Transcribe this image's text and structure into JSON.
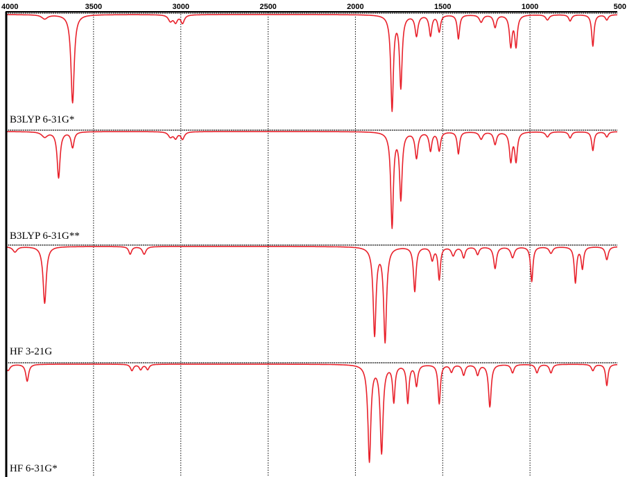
{
  "chart_data": {
    "type": "line",
    "xlabel": "",
    "ylabel": "",
    "xlim": [
      4000,
      500
    ],
    "x_reversed": true,
    "x_ticks": [
      4000,
      3500,
      3000,
      2500,
      2000,
      1500,
      1000,
      500
    ],
    "x_tick_labels": [
      "4000",
      "3500",
      "3000",
      "2500",
      "2000",
      "1500",
      "1000",
      "500"
    ],
    "grid": "vertical dotted",
    "line_color": "#e8202a",
    "panels": [
      {
        "label": "B3LYP 6-31G*",
        "peaks": [
          {
            "x": 3780,
            "depth": 0.04,
            "w": 20
          },
          {
            "x": 3620,
            "depth": 0.84,
            "w": 11
          },
          {
            "x": 3060,
            "depth": 0.06,
            "w": 14
          },
          {
            "x": 3030,
            "depth": 0.07,
            "w": 12
          },
          {
            "x": 2990,
            "depth": 0.08,
            "w": 12
          },
          {
            "x": 1790,
            "depth": 0.92,
            "w": 9
          },
          {
            "x": 1740,
            "depth": 0.7,
            "w": 9
          },
          {
            "x": 1650,
            "depth": 0.2,
            "w": 10
          },
          {
            "x": 1570,
            "depth": 0.2,
            "w": 9
          },
          {
            "x": 1520,
            "depth": 0.16,
            "w": 9
          },
          {
            "x": 1410,
            "depth": 0.23,
            "w": 8
          },
          {
            "x": 1280,
            "depth": 0.07,
            "w": 12
          },
          {
            "x": 1200,
            "depth": 0.12,
            "w": 10
          },
          {
            "x": 1110,
            "depth": 0.3,
            "w": 9
          },
          {
            "x": 1080,
            "depth": 0.3,
            "w": 9
          },
          {
            "x": 900,
            "depth": 0.05,
            "w": 12
          },
          {
            "x": 770,
            "depth": 0.06,
            "w": 10
          },
          {
            "x": 640,
            "depth": 0.3,
            "w": 8
          },
          {
            "x": 560,
            "depth": 0.05,
            "w": 10
          }
        ]
      },
      {
        "label": "B3LYP 6-31G**",
        "peaks": [
          {
            "x": 3780,
            "depth": 0.05,
            "w": 20
          },
          {
            "x": 3700,
            "depth": 0.44,
            "w": 10
          },
          {
            "x": 3620,
            "depth": 0.15,
            "w": 10
          },
          {
            "x": 3060,
            "depth": 0.05,
            "w": 14
          },
          {
            "x": 3030,
            "depth": 0.06,
            "w": 12
          },
          {
            "x": 2990,
            "depth": 0.07,
            "w": 12
          },
          {
            "x": 1790,
            "depth": 0.92,
            "w": 9
          },
          {
            "x": 1740,
            "depth": 0.65,
            "w": 9
          },
          {
            "x": 1650,
            "depth": 0.25,
            "w": 10
          },
          {
            "x": 1570,
            "depth": 0.18,
            "w": 9
          },
          {
            "x": 1520,
            "depth": 0.18,
            "w": 9
          },
          {
            "x": 1410,
            "depth": 0.21,
            "w": 8
          },
          {
            "x": 1280,
            "depth": 0.07,
            "w": 12
          },
          {
            "x": 1200,
            "depth": 0.12,
            "w": 10
          },
          {
            "x": 1110,
            "depth": 0.28,
            "w": 9
          },
          {
            "x": 1080,
            "depth": 0.28,
            "w": 9
          },
          {
            "x": 900,
            "depth": 0.05,
            "w": 12
          },
          {
            "x": 770,
            "depth": 0.06,
            "w": 10
          },
          {
            "x": 640,
            "depth": 0.18,
            "w": 8
          },
          {
            "x": 560,
            "depth": 0.05,
            "w": 10
          }
        ]
      },
      {
        "label": "HF 3-21G",
        "peaks": [
          {
            "x": 3950,
            "depth": 0.05,
            "w": 15
          },
          {
            "x": 3780,
            "depth": 0.52,
            "w": 11
          },
          {
            "x": 3290,
            "depth": 0.07,
            "w": 10
          },
          {
            "x": 3210,
            "depth": 0.07,
            "w": 12
          },
          {
            "x": 1890,
            "depth": 0.82,
            "w": 10
          },
          {
            "x": 1830,
            "depth": 0.88,
            "w": 10
          },
          {
            "x": 1660,
            "depth": 0.41,
            "w": 9
          },
          {
            "x": 1560,
            "depth": 0.12,
            "w": 10
          },
          {
            "x": 1520,
            "depth": 0.3,
            "w": 8
          },
          {
            "x": 1440,
            "depth": 0.08,
            "w": 12
          },
          {
            "x": 1380,
            "depth": 0.1,
            "w": 10
          },
          {
            "x": 1300,
            "depth": 0.07,
            "w": 10
          },
          {
            "x": 1200,
            "depth": 0.2,
            "w": 10
          },
          {
            "x": 1100,
            "depth": 0.1,
            "w": 12
          },
          {
            "x": 990,
            "depth": 0.32,
            "w": 8
          },
          {
            "x": 880,
            "depth": 0.06,
            "w": 12
          },
          {
            "x": 740,
            "depth": 0.33,
            "w": 8
          },
          {
            "x": 700,
            "depth": 0.2,
            "w": 8
          },
          {
            "x": 560,
            "depth": 0.12,
            "w": 10
          }
        ]
      },
      {
        "label": "HF 6-31G*",
        "peaks": [
          {
            "x": 3990,
            "depth": 0.06,
            "w": 14
          },
          {
            "x": 3880,
            "depth": 0.16,
            "w": 10
          },
          {
            "x": 3280,
            "depth": 0.06,
            "w": 10
          },
          {
            "x": 3230,
            "depth": 0.05,
            "w": 10
          },
          {
            "x": 3190,
            "depth": 0.05,
            "w": 10
          },
          {
            "x": 1920,
            "depth": 0.92,
            "w": 10
          },
          {
            "x": 1850,
            "depth": 0.84,
            "w": 10
          },
          {
            "x": 1780,
            "depth": 0.35,
            "w": 8
          },
          {
            "x": 1700,
            "depth": 0.36,
            "w": 8
          },
          {
            "x": 1650,
            "depth": 0.2,
            "w": 9
          },
          {
            "x": 1520,
            "depth": 0.37,
            "w": 8
          },
          {
            "x": 1450,
            "depth": 0.07,
            "w": 10
          },
          {
            "x": 1380,
            "depth": 0.1,
            "w": 10
          },
          {
            "x": 1300,
            "depth": 0.1,
            "w": 10
          },
          {
            "x": 1230,
            "depth": 0.4,
            "w": 9
          },
          {
            "x": 1100,
            "depth": 0.08,
            "w": 10
          },
          {
            "x": 960,
            "depth": 0.08,
            "w": 10
          },
          {
            "x": 880,
            "depth": 0.08,
            "w": 10
          },
          {
            "x": 640,
            "depth": 0.06,
            "w": 10
          },
          {
            "x": 560,
            "depth": 0.2,
            "w": 8
          }
        ]
      }
    ]
  }
}
